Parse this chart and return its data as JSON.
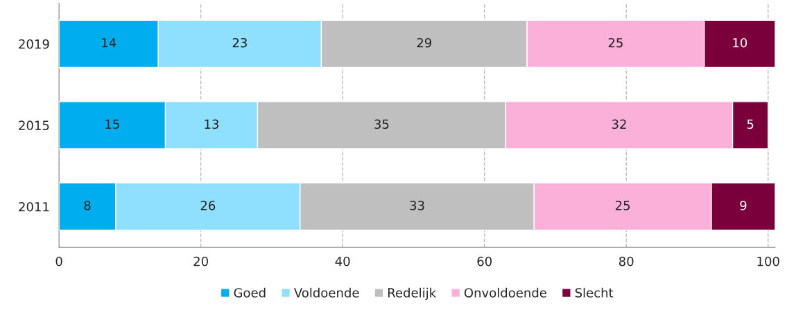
{
  "chart_data": {
    "type": "bar",
    "orientation": "horizontal",
    "stacked": true,
    "categories": [
      "2019",
      "2015",
      "2011"
    ],
    "series": [
      {
        "name": "Goed",
        "color": "#00aeef",
        "values": [
          14,
          15,
          8
        ]
      },
      {
        "name": "Voldoende",
        "color": "#8fdfff",
        "values": [
          23,
          13,
          26
        ]
      },
      {
        "name": "Redelijk",
        "color": "#bfbfbf",
        "values": [
          29,
          35,
          33
        ]
      },
      {
        "name": "Onvoldoende",
        "color": "#fbb0d9",
        "values": [
          25,
          32,
          25
        ]
      },
      {
        "name": "Slecht",
        "color": "#7a003c",
        "values": [
          10,
          5,
          9
        ]
      }
    ],
    "xlim": [
      0,
      101
    ],
    "xticks": [
      0,
      20,
      40,
      60,
      80,
      100
    ],
    "grid": "x",
    "legend": "bottom",
    "data_labels": true
  }
}
